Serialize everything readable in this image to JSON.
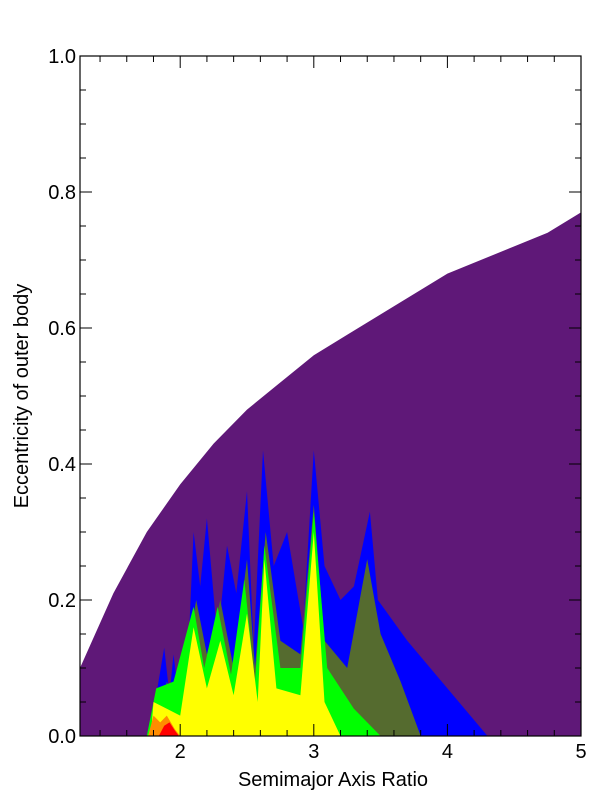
{
  "chart_data": {
    "type": "area",
    "xlabel": "Semimajor Axis Ratio",
    "ylabel": "Eccentricity of outer body",
    "xlim": [
      1.25,
      5.0
    ],
    "ylim": [
      0.0,
      1.0
    ],
    "x_major_ticks": [
      2,
      3,
      4,
      5
    ],
    "x_minor_step": 0.2,
    "y_major_ticks": [
      0.0,
      0.2,
      0.4,
      0.6,
      0.8,
      1.0
    ],
    "y_minor_step": 0.05,
    "y_tick_labels": [
      "0.0",
      "0.2",
      "0.4",
      "0.6",
      "0.8",
      "1.0"
    ],
    "x_tick_labels": [
      "2",
      "3",
      "4",
      "5"
    ],
    "grid": false,
    "colors": {
      "stable_region": "#5f1878",
      "blue": "#0000ff",
      "olive": "#556b2f",
      "green": "#00ff00",
      "yellow": "#ffff00",
      "orange": "#ff8c00",
      "red": "#ff0000"
    },
    "boundary_curve": {
      "x": [
        1.25,
        1.5,
        1.75,
        2.0,
        2.25,
        2.5,
        2.75,
        3.0,
        3.25,
        3.5,
        3.75,
        4.0,
        4.25,
        4.5,
        4.75,
        5.0
      ],
      "y": [
        0.1,
        0.21,
        0.3,
        0.37,
        0.43,
        0.48,
        0.52,
        0.56,
        0.59,
        0.62,
        0.65,
        0.68,
        0.7,
        0.72,
        0.74,
        0.77
      ]
    },
    "regions": [
      {
        "name": "blue",
        "color": "#0000ff",
        "polygon": [
          [
            1.8,
            0
          ],
          [
            1.82,
            0.06
          ],
          [
            1.88,
            0.13
          ],
          [
            1.92,
            0.06
          ],
          [
            1.95,
            0.12
          ],
          [
            2.0,
            0.04
          ],
          [
            2.05,
            0.08
          ],
          [
            2.1,
            0.3
          ],
          [
            2.15,
            0.22
          ],
          [
            2.2,
            0.32
          ],
          [
            2.28,
            0.14
          ],
          [
            2.35,
            0.28
          ],
          [
            2.42,
            0.21
          ],
          [
            2.5,
            0.36
          ],
          [
            2.55,
            0.13
          ],
          [
            2.62,
            0.42
          ],
          [
            2.7,
            0.25
          ],
          [
            2.8,
            0.3
          ],
          [
            2.92,
            0.16
          ],
          [
            3.0,
            0.42
          ],
          [
            3.08,
            0.25
          ],
          [
            3.2,
            0.2
          ],
          [
            3.3,
            0.22
          ],
          [
            3.42,
            0.33
          ],
          [
            3.48,
            0.2
          ],
          [
            3.7,
            0.14
          ],
          [
            4.0,
            0.07
          ],
          [
            4.3,
            0
          ],
          [
            1.8,
            0
          ]
        ]
      },
      {
        "name": "olive",
        "color": "#556b2f",
        "polygon": [
          [
            1.82,
            0
          ],
          [
            1.9,
            0.08
          ],
          [
            1.98,
            0.04
          ],
          [
            2.12,
            0.2
          ],
          [
            2.2,
            0.12
          ],
          [
            2.3,
            0.2
          ],
          [
            2.4,
            0.1
          ],
          [
            2.5,
            0.26
          ],
          [
            2.56,
            0.1
          ],
          [
            2.64,
            0.3
          ],
          [
            2.75,
            0.14
          ],
          [
            2.9,
            0.12
          ],
          [
            3.0,
            0.34
          ],
          [
            3.08,
            0.14
          ],
          [
            3.25,
            0.1
          ],
          [
            3.4,
            0.26
          ],
          [
            3.5,
            0.15
          ],
          [
            3.65,
            0.08
          ],
          [
            3.8,
            0
          ],
          [
            1.82,
            0
          ]
        ]
      },
      {
        "name": "green",
        "color": "#00ff00",
        "polygon": [
          [
            1.75,
            0
          ],
          [
            1.82,
            0.07
          ],
          [
            1.95,
            0.08
          ],
          [
            2.1,
            0.19
          ],
          [
            2.18,
            0.1
          ],
          [
            2.28,
            0.19
          ],
          [
            2.38,
            0.09
          ],
          [
            2.48,
            0.23
          ],
          [
            2.56,
            0.08
          ],
          [
            2.63,
            0.28
          ],
          [
            2.75,
            0.1
          ],
          [
            2.9,
            0.1
          ],
          [
            3.0,
            0.33
          ],
          [
            3.1,
            0.1
          ],
          [
            3.3,
            0.04
          ],
          [
            3.5,
            0
          ],
          [
            1.75,
            0
          ]
        ]
      },
      {
        "name": "yellow",
        "color": "#ffff00",
        "polygon": [
          [
            1.78,
            0
          ],
          [
            1.8,
            0.05
          ],
          [
            1.9,
            0.04
          ],
          [
            2.0,
            0.03
          ],
          [
            2.1,
            0.16
          ],
          [
            2.2,
            0.07
          ],
          [
            2.3,
            0.14
          ],
          [
            2.4,
            0.06
          ],
          [
            2.5,
            0.18
          ],
          [
            2.58,
            0.05
          ],
          [
            2.63,
            0.26
          ],
          [
            2.72,
            0.07
          ],
          [
            2.9,
            0.06
          ],
          [
            3.0,
            0.3
          ],
          [
            3.08,
            0.05
          ],
          [
            3.2,
            0
          ],
          [
            1.78,
            0
          ]
        ]
      },
      {
        "name": "orange",
        "color": "#ff8c00",
        "polygon": [
          [
            1.76,
            0
          ],
          [
            1.8,
            0.03
          ],
          [
            1.85,
            0.02
          ],
          [
            1.9,
            0.03
          ],
          [
            1.96,
            0.01
          ],
          [
            2.0,
            0
          ],
          [
            1.76,
            0
          ]
        ]
      },
      {
        "name": "red",
        "color": "#ff0000",
        "polygon": [
          [
            1.84,
            0
          ],
          [
            1.88,
            0.015
          ],
          [
            1.92,
            0.02
          ],
          [
            1.96,
            0.008
          ],
          [
            1.99,
            0
          ],
          [
            1.84,
            0
          ]
        ]
      }
    ]
  }
}
